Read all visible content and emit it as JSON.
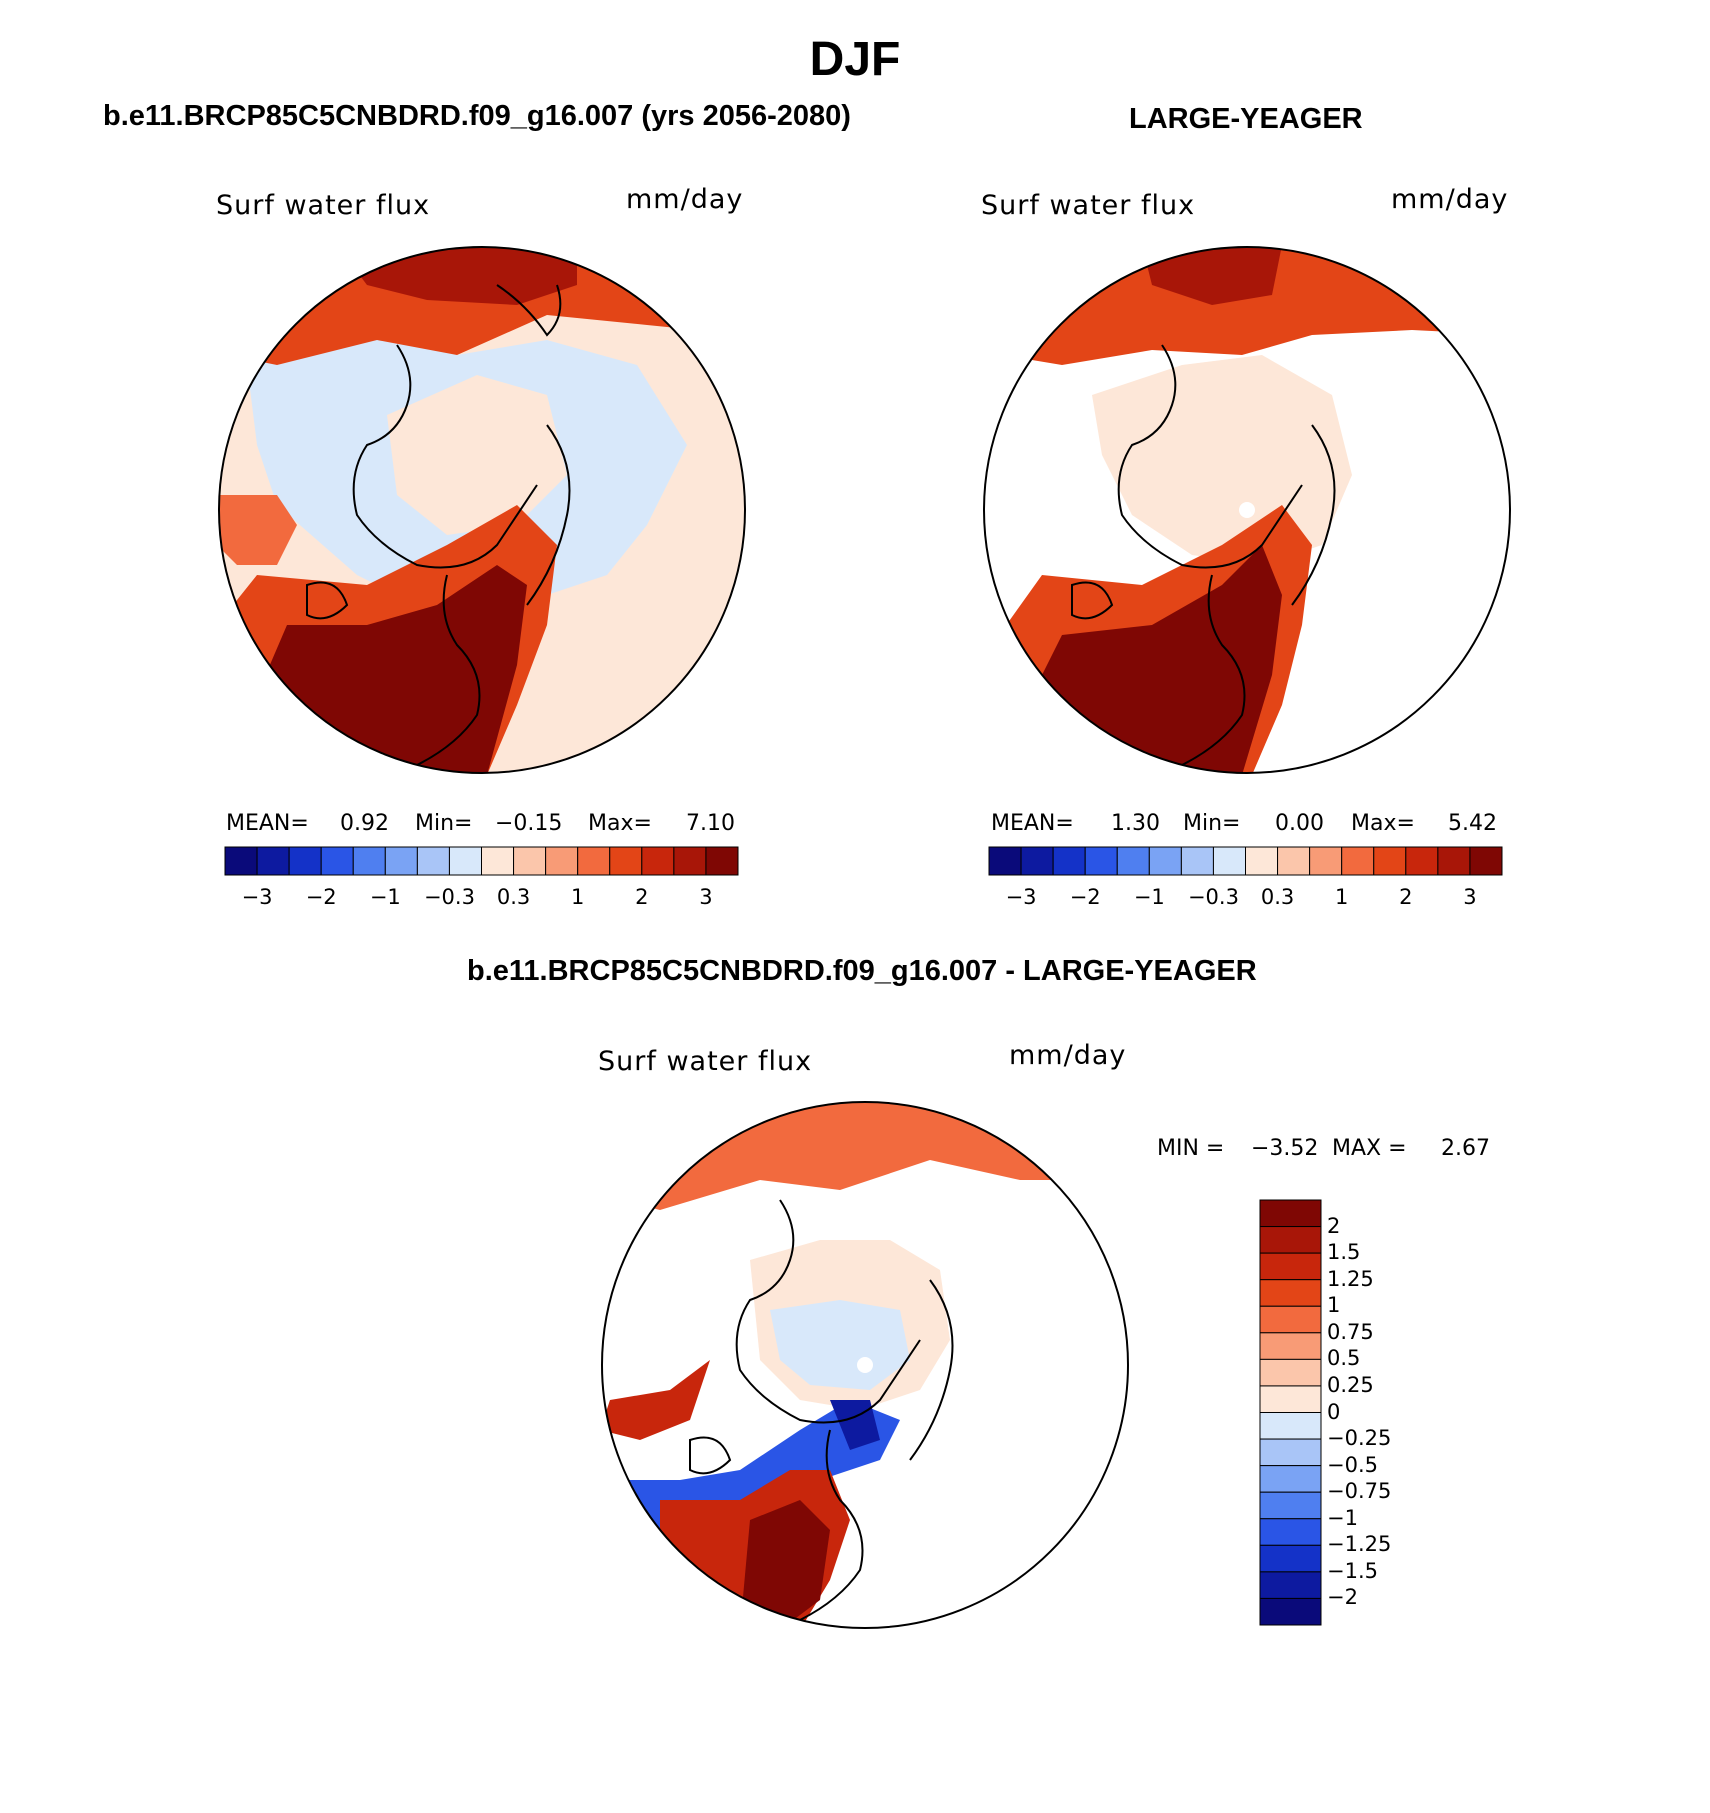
{
  "figure": {
    "title": "DJF",
    "panel_left": {
      "heading": "b.e11.BRCP85C5CNBDRD.f09_g16.007 (yrs 2056-2080)",
      "variable": "Surf water flux",
      "units": "mm/day",
      "mean_label": "MEAN=",
      "mean_value": "0.92",
      "min_label": "Min=",
      "min_value": "−0.15",
      "max_label": "Max=",
      "max_value": "7.10"
    },
    "panel_right": {
      "heading": "LARGE-YEAGER",
      "variable": "Surf water flux",
      "units": "mm/day",
      "mean_label": "MEAN=",
      "mean_value": "1.30",
      "min_label": "Min=",
      "min_value": "0.00",
      "max_label": "Max=",
      "max_value": "5.42"
    },
    "panel_diff": {
      "heading": "b.e11.BRCP85C5CNBDRD.f09_g16.007 - LARGE-YEAGER",
      "variable": "Surf water flux",
      "units": "mm/day",
      "min_label": "MIN =",
      "min_value": "−3.52",
      "max_label": "MAX =",
      "max_value": "2.67"
    },
    "colorbar_horizontal": {
      "colors": [
        "#0a0a7a",
        "#0d1aa0",
        "#1432c8",
        "#2a55e6",
        "#4f7ff0",
        "#7aa3f4",
        "#a9c5f7",
        "#d8e8fa",
        "#fde7d8",
        "#fbc6ab",
        "#f89b76",
        "#f26a3e",
        "#e34517",
        "#c8260c",
        "#a81608",
        "#7f0704"
      ],
      "tick_labels": [
        "−3",
        "−2",
        "−1",
        "−0.3",
        "0.3",
        "1",
        "2",
        "3"
      ]
    },
    "colorbar_vertical": {
      "colors": [
        "#7f0704",
        "#a81608",
        "#c8260c",
        "#e34517",
        "#f26a3e",
        "#f89b76",
        "#fbc6ab",
        "#fde7d8",
        "#d8e8fa",
        "#a9c5f7",
        "#7aa3f4",
        "#4f7ff0",
        "#2a55e6",
        "#1432c8",
        "#0d1aa0",
        "#0a0a7a"
      ],
      "tick_labels": [
        "2",
        "1.5",
        "1.25",
        "1",
        "0.75",
        "0.5",
        "0.25",
        "0",
        "−0.25",
        "−0.5",
        "−0.75",
        "−1",
        "−1.25",
        "−1.5",
        "−2"
      ]
    },
    "map_colors": {
      "light_blue": "#d8e8fa",
      "pale_orange": "#fde7d8",
      "salmon": "#fbc6ab",
      "orange": "#f26a3e",
      "red": "#c8260c",
      "dark_red": "#7f0704",
      "blue": "#2a55e6",
      "dark_blue": "#0d1aa0"
    }
  }
}
